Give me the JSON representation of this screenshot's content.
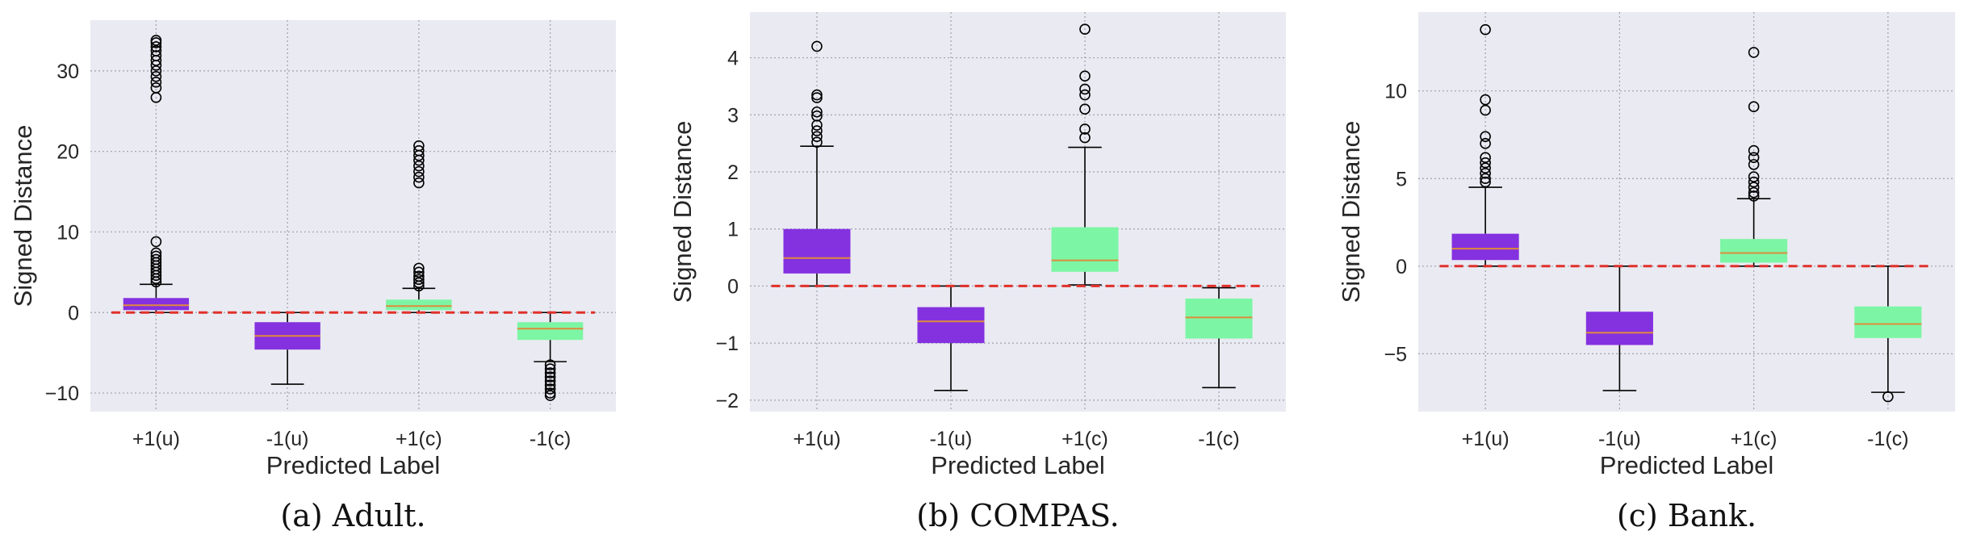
{
  "figure": {
    "colors": {
      "plot_bg": "#eaeaf2",
      "grid": "#a0a0a8",
      "purple": "#8431e0",
      "green": "#7cf6a4",
      "median": "#e08a3c",
      "zero_line": "#e0302a",
      "text": "#262626"
    }
  },
  "chart_data": [
    {
      "type": "box",
      "caption": "(a) Adult.",
      "xlabel": "Predicted Label",
      "ylabel": "Signed Distance",
      "categories": [
        "+1(u)",
        "-1(u)",
        "+1(c)",
        "-1(c)"
      ],
      "ylim": [
        -12.3,
        36.3
      ],
      "yticks": [
        -10,
        0,
        10,
        20,
        30
      ],
      "ytick_labels": [
        "−10",
        "0",
        "10",
        "20",
        "30"
      ],
      "grid": true,
      "reference_line_y": 0,
      "boxes": [
        {
          "color": "purple",
          "whisker_low": 0,
          "q1": 0.3,
          "median": 0.9,
          "q3": 1.8,
          "whisker_high": 3.5,
          "outliers": [
            3.8,
            4.2,
            4.6,
            5.0,
            5.4,
            5.8,
            6.2,
            6.6,
            7.0,
            7.4,
            8.8,
            26.7,
            27.9,
            28.6,
            29.3,
            30.0,
            30.7,
            31.3,
            31.9,
            32.5,
            33.0,
            33.5,
            33.8
          ]
        },
        {
          "color": "purple",
          "whisker_low": -8.9,
          "q1": -4.6,
          "median": -2.9,
          "q3": -1.2,
          "whisker_high": 0,
          "outliers": []
        },
        {
          "color": "green",
          "whisker_low": 0,
          "q1": 0.3,
          "median": 0.8,
          "q3": 1.6,
          "whisker_high": 3.0,
          "outliers": [
            3.3,
            3.7,
            4.1,
            4.5,
            5.0,
            5.5,
            16.1,
            16.8,
            17.5,
            18.2,
            18.9,
            19.5,
            20.1,
            20.7
          ]
        },
        {
          "color": "green",
          "whisker_low": -6.1,
          "q1": -3.4,
          "median": -2.0,
          "q3": -1.2,
          "whisker_high": 0,
          "outliers": [
            -6.5,
            -7.0,
            -7.5,
            -8.0,
            -8.5,
            -9.0,
            -9.5,
            -10.0,
            -10.3
          ]
        }
      ]
    },
    {
      "type": "box",
      "caption": "(b) COMPAS.",
      "xlabel": "Predicted Label",
      "ylabel": "Signed Distance",
      "categories": [
        "+1(u)",
        "-1(u)",
        "+1(c)",
        "-1(c)"
      ],
      "ylim": [
        -2.2,
        4.8
      ],
      "yticks": [
        -2,
        -1,
        0,
        1,
        2,
        3,
        4
      ],
      "ytick_labels": [
        "−2",
        "−1",
        "0",
        "1",
        "2",
        "3",
        "4"
      ],
      "grid": true,
      "reference_line_y": 0,
      "boxes": [
        {
          "color": "purple",
          "whisker_low": 0.0,
          "q1": 0.22,
          "median": 0.49,
          "q3": 1.0,
          "whisker_high": 2.45,
          "outliers": [
            2.52,
            2.62,
            2.72,
            2.82,
            2.98,
            3.05,
            3.3,
            3.35,
            4.2
          ]
        },
        {
          "color": "purple",
          "whisker_low": -1.83,
          "q1": -1.0,
          "median": -0.62,
          "q3": -0.37,
          "whisker_high": 0,
          "outliers": []
        },
        {
          "color": "green",
          "whisker_low": 0.02,
          "q1": 0.25,
          "median": 0.45,
          "q3": 1.03,
          "whisker_high": 2.43,
          "outliers": [
            2.6,
            2.75,
            3.1,
            3.35,
            3.45,
            3.68,
            4.5
          ]
        },
        {
          "color": "green",
          "whisker_low": -1.78,
          "q1": -0.92,
          "median": -0.55,
          "q3": -0.22,
          "whisker_high": -0.03,
          "outliers": []
        }
      ]
    },
    {
      "type": "box",
      "caption": "(c) Bank.",
      "xlabel": "Predicted Label",
      "ylabel": "Signed Distance",
      "categories": [
        "+1(u)",
        "-1(u)",
        "+1(c)",
        "-1(c)"
      ],
      "ylim": [
        -8.3,
        14.5
      ],
      "yticks": [
        -5,
        0,
        5,
        10
      ],
      "ytick_labels": [
        "−5",
        "0",
        "5",
        "10"
      ],
      "grid": true,
      "reference_line_y": 0,
      "boxes": [
        {
          "color": "purple",
          "whisker_low": 0,
          "q1": 0.35,
          "median": 1.0,
          "q3": 1.85,
          "whisker_high": 4.5,
          "outliers": [
            4.8,
            5.0,
            5.3,
            5.6,
            5.9,
            6.2,
            7.0,
            7.4,
            8.9,
            9.5,
            13.5
          ]
        },
        {
          "color": "purple",
          "whisker_low": -7.1,
          "q1": -4.5,
          "median": -3.8,
          "q3": -2.6,
          "whisker_high": 0,
          "outliers": []
        },
        {
          "color": "green",
          "whisker_low": 0,
          "q1": 0.2,
          "median": 0.75,
          "q3": 1.55,
          "whisker_high": 3.85,
          "outliers": [
            4.0,
            4.2,
            4.5,
            4.8,
            5.1,
            5.8,
            6.2,
            6.6,
            9.1,
            12.2
          ]
        },
        {
          "color": "green",
          "whisker_low": -7.2,
          "q1": -4.1,
          "median": -3.3,
          "q3": -2.3,
          "whisker_high": 0,
          "outliers": [
            -7.45
          ]
        }
      ]
    }
  ]
}
